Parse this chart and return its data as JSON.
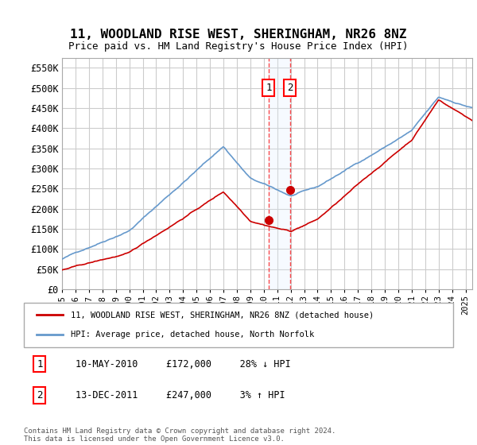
{
  "title": "11, WOODLAND RISE WEST, SHERINGHAM, NR26 8NZ",
  "subtitle": "Price paid vs. HM Land Registry's House Price Index (HPI)",
  "xlim_start": 1995.0,
  "xlim_end": 2025.5,
  "ylim": [
    0,
    575000
  ],
  "yticks": [
    0,
    50000,
    100000,
    150000,
    200000,
    250000,
    300000,
    350000,
    400000,
    450000,
    500000,
    550000
  ],
  "sale1_date": 2010.36,
  "sale1_price": 172000,
  "sale2_date": 2011.95,
  "sale2_price": 247000,
  "legend_line1": "11, WOODLAND RISE WEST, SHERINGHAM, NR26 8NZ (detached house)",
  "legend_line2": "HPI: Average price, detached house, North Norfolk",
  "annotation1_text": "10-MAY-2010     £172,000     28% ↓ HPI",
  "annotation2_text": "13-DEC-2011     £247,000     3% ↑ HPI",
  "footer": "Contains HM Land Registry data © Crown copyright and database right 2024.\nThis data is licensed under the Open Government Licence v3.0.",
  "hpi_color": "#6699cc",
  "sale_color": "#cc0000",
  "background_color": "#ffffff",
  "grid_color": "#cccccc",
  "shade_color": "#ddeeff"
}
